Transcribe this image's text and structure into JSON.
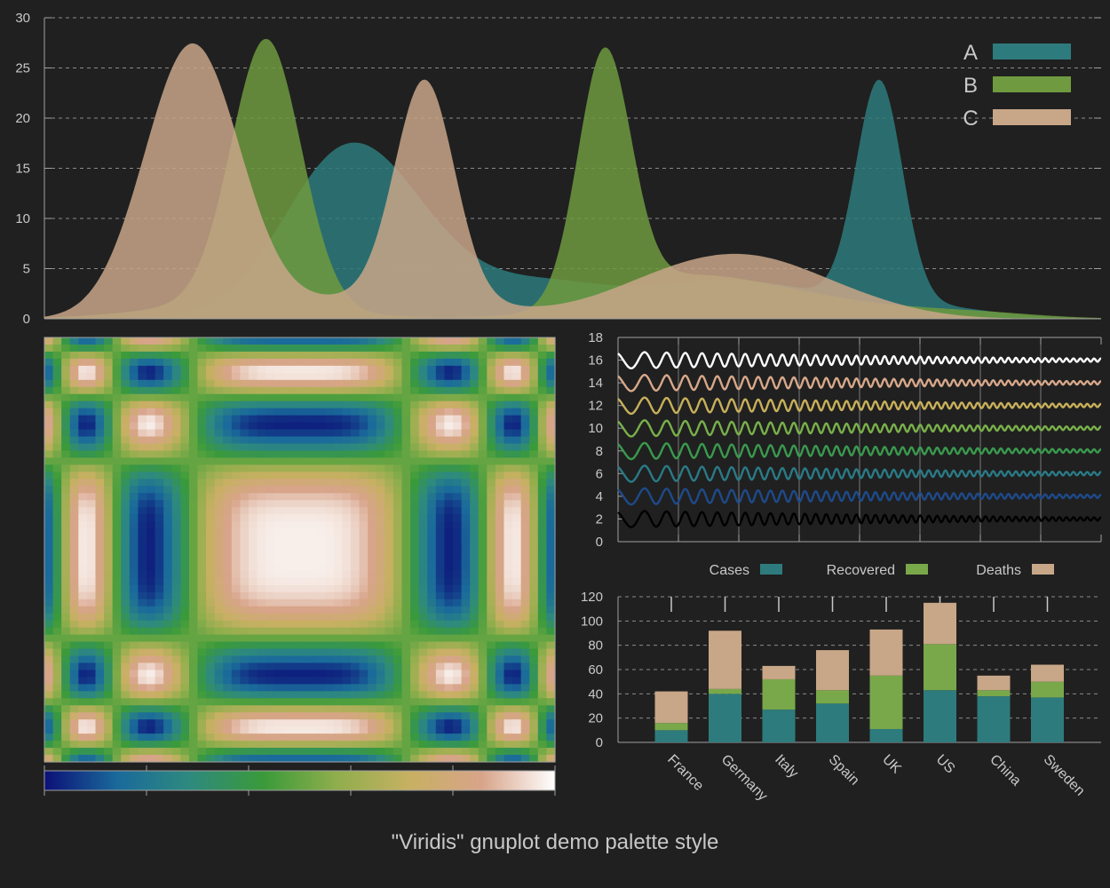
{
  "page": {
    "title": "\"Viridis\" gnuplot demo palette style"
  },
  "colors": {
    "background": "#202020",
    "A": "#2e7b7d",
    "B": "#6f9a3f",
    "C": "#c8a688",
    "text": "#c8c8c8"
  },
  "chart_data": [
    {
      "type": "area",
      "ylim": [
        0,
        30
      ],
      "yticks": [
        0,
        5,
        10,
        15,
        20,
        25,
        30
      ],
      "grid": true,
      "legend": "top-right",
      "x_range": [
        0,
        100
      ],
      "series": [
        {
          "name": "A",
          "color": "#2e7b7d",
          "peaks": [
            {
              "x": 27,
              "y": 11.0,
              "w": 5.5
            },
            {
              "x": 33,
              "y": 9.0,
              "w": 6
            },
            {
              "x": 47,
              "y": 3.0,
              "w": 6
            },
            {
              "x": 65,
              "y": 3.8,
              "w": 9
            },
            {
              "x": 79,
              "y": 22.0,
              "w": 2.2
            },
            {
              "x": 84,
              "y": 1.0,
              "w": 6
            }
          ]
        },
        {
          "name": "B",
          "color": "#6f9a3f",
          "peaks": [
            {
              "x": 18,
              "y": 1.5,
              "w": 8
            },
            {
              "x": 21,
              "y": 26.5,
              "w": 3.3
            },
            {
              "x": 53,
              "y": 24.5,
              "w": 2.5
            },
            {
              "x": 59,
              "y": 2.5,
              "w": 7
            },
            {
              "x": 68,
              "y": 2.5,
              "w": 10
            },
            {
              "x": 88,
              "y": 0.5,
              "w": 6
            }
          ]
        },
        {
          "name": "C",
          "color": "#c8a688",
          "peaks": [
            {
              "x": 14,
              "y": 27.3,
              "w": 4.5
            },
            {
              "x": 36,
              "y": 21.5,
              "w": 2.8
            },
            {
              "x": 33,
              "y": 2.5,
              "w": 8
            },
            {
              "x": 60,
              "y": 4.0,
              "w": 7
            },
            {
              "x": 68,
              "y": 3.5,
              "w": 6
            },
            {
              "x": 76,
              "y": 1.5,
              "w": 6
            }
          ]
        }
      ]
    },
    {
      "type": "heatmap",
      "colorbar": {
        "stops": [
          "#0c1077",
          "#1a6a9b",
          "#2e8a7e",
          "#3a9a3a",
          "#8fae4c",
          "#c7b062",
          "#d8a48a",
          "#ffffff"
        ]
      }
    },
    {
      "type": "line",
      "ylim": [
        0,
        18
      ],
      "yticks": [
        0,
        2,
        4,
        6,
        8,
        10,
        12,
        14,
        16,
        18
      ],
      "series": [
        {
          "offset": 2,
          "color": "#000000"
        },
        {
          "offset": 4,
          "color": "#1e4a8a"
        },
        {
          "offset": 6,
          "color": "#2a7a86"
        },
        {
          "offset": 8,
          "color": "#3a9a4e"
        },
        {
          "offset": 10,
          "color": "#79b04a"
        },
        {
          "offset": 12,
          "color": "#c8b05a"
        },
        {
          "offset": 14,
          "color": "#d8a88a"
        },
        {
          "offset": 16,
          "color": "#ffffff"
        }
      ]
    },
    {
      "type": "bar",
      "stacked": true,
      "ylim": [
        0,
        120
      ],
      "yticks": [
        0,
        20,
        40,
        60,
        80,
        100,
        120
      ],
      "categories": [
        "France",
        "Germany",
        "Italy",
        "Spain",
        "UK",
        "US",
        "China",
        "Sweden"
      ],
      "series": [
        {
          "name": "Cases",
          "color": "#2e7b7d",
          "values": [
            10,
            40,
            27,
            32,
            11,
            43,
            38,
            37
          ]
        },
        {
          "name": "Recovered",
          "color": "#79a84a",
          "values": [
            6,
            4,
            25,
            11,
            44,
            38,
            5,
            13
          ]
        },
        {
          "name": "Deaths",
          "color": "#c8a688",
          "values": [
            26,
            48,
            11,
            33,
            38,
            34,
            12,
            14
          ]
        }
      ]
    }
  ]
}
